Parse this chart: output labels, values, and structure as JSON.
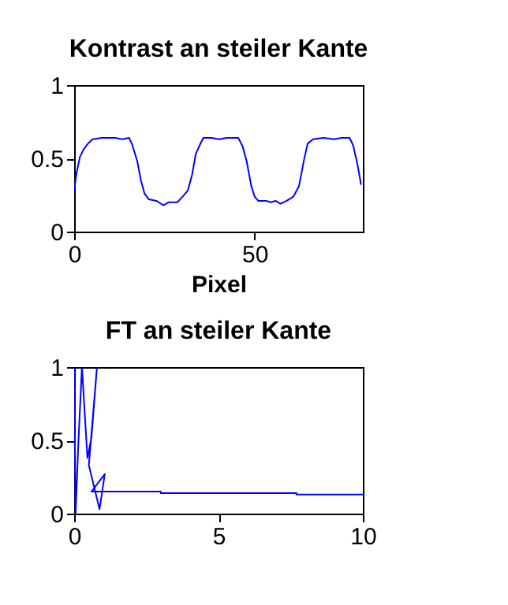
{
  "chart_data": [
    {
      "type": "line",
      "title": "Kontrast an steiler Kante",
      "xlabel": "Pixel",
      "xlim": [
        0,
        80
      ],
      "xticks": [
        0,
        50
      ],
      "ylim": [
        0,
        1
      ],
      "yticks": [
        0,
        0.5,
        1
      ],
      "grid": false,
      "marker": "none",
      "line_style": "solid",
      "series": [
        {
          "color": "#0000ff",
          "x": [
            0,
            0.6,
            1.6,
            2.6,
            3.8,
            5.1,
            7.7,
            11.3,
            13.4,
            15.2,
            16.0,
            17.5,
            18.5,
            19.5,
            20.7,
            22.8,
            24.7,
            26.2,
            28.6,
            30.1,
            31.5,
            32.7,
            33.7,
            34.8,
            35.8,
            38.0,
            40.2,
            42.3,
            45.5,
            46.7,
            47.8,
            49.1,
            50,
            51,
            53.2,
            54.6,
            55.8,
            57.2,
            58.9,
            60.8,
            62.3,
            63.7,
            64.7,
            66.2,
            69.1,
            72,
            74.1,
            76.3,
            77.3,
            78.5,
            79.5
          ],
          "values": [
            0.28,
            0.39,
            0.51,
            0.56,
            0.6,
            0.63,
            0.64,
            0.64,
            0.63,
            0.64,
            0.6,
            0.48,
            0.35,
            0.26,
            0.22,
            0.21,
            0.18,
            0.2,
            0.2,
            0.24,
            0.28,
            0.39,
            0.53,
            0.59,
            0.64,
            0.64,
            0.63,
            0.64,
            0.64,
            0.58,
            0.48,
            0.31,
            0.24,
            0.21,
            0.21,
            0.2,
            0.21,
            0.19,
            0.21,
            0.24,
            0.31,
            0.49,
            0.6,
            0.63,
            0.64,
            0.63,
            0.64,
            0.64,
            0.59,
            0.46,
            0.32
          ]
        }
      ]
    },
    {
      "type": "line",
      "title": "FT an steiler Kante",
      "xlim": [
        0,
        10
      ],
      "xticks": [
        0,
        5,
        10
      ],
      "ylim": [
        0,
        1
      ],
      "yticks": [
        0,
        0.5,
        1
      ],
      "grid": false,
      "marker": "none",
      "line_style": "solid",
      "series": [
        {
          "color": "#0000ff",
          "x": [
            0,
            0.05,
            0.15,
            0.27,
            0.46,
            0.6,
            0.79,
            0.51,
            0.88,
            1.06,
            0.6,
            3.0,
            3.0,
            7.7,
            7.7,
            10
          ],
          "values": [
            1.0,
            0.0,
            0.5,
            1.0,
            0.38,
            0.52,
            1.0,
            0.33,
            0.03,
            0.27,
            0.15,
            0.15,
            0.14,
            0.14,
            0.13,
            0.13
          ]
        }
      ]
    }
  ]
}
